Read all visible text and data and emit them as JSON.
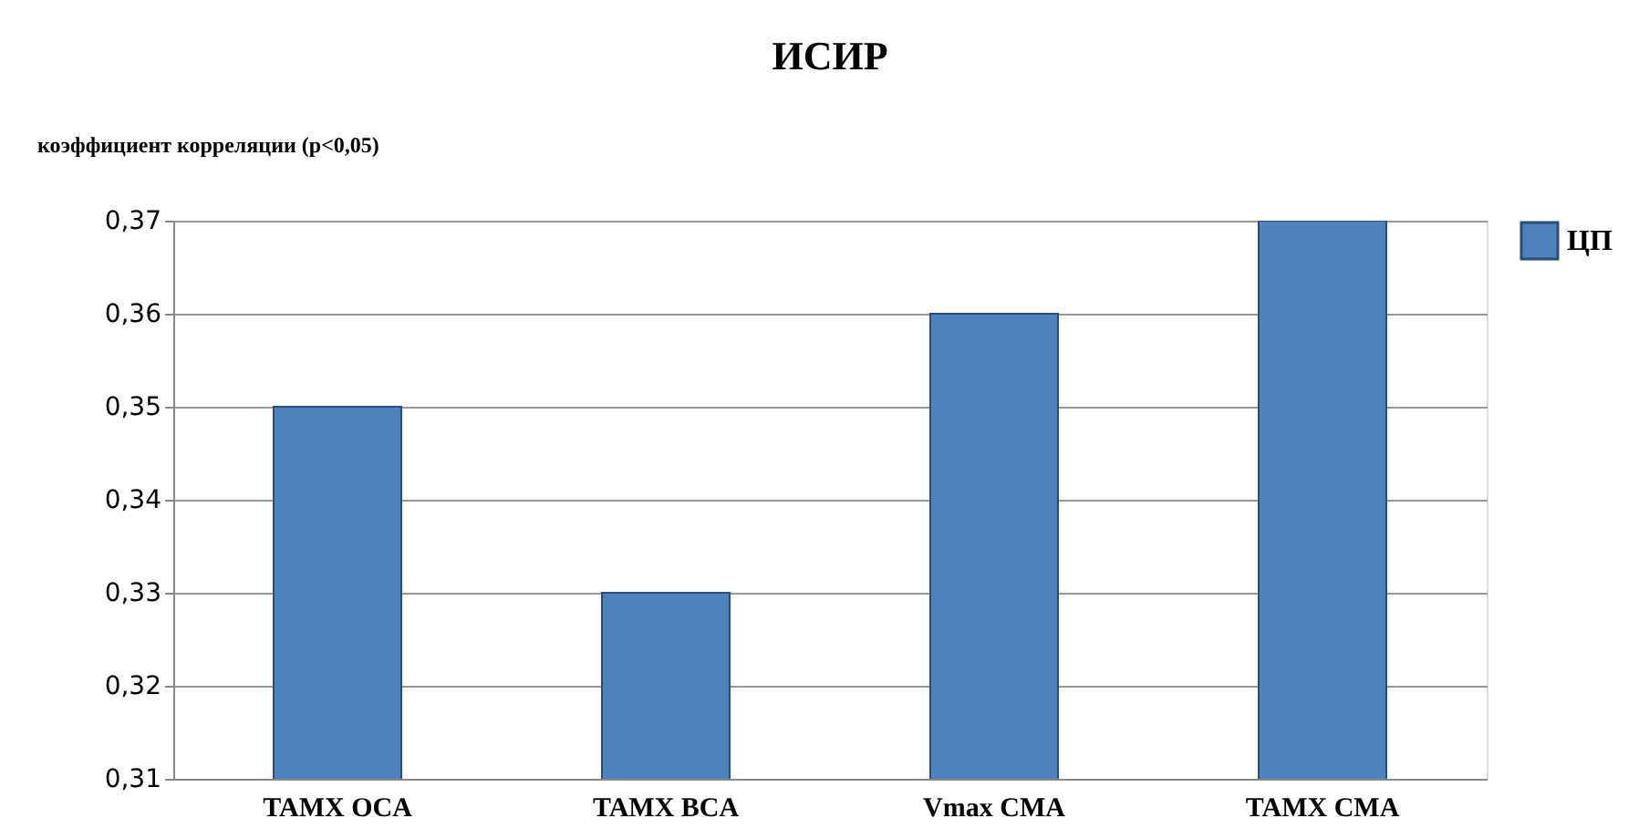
{
  "chart_data": {
    "type": "bar",
    "title": "ИСИР",
    "ylabel": "коэффициент корреляции (р<0,05)",
    "categories": [
      "TAMX OCA",
      "TAMX BCA",
      "Vmax CMA",
      "TAMX CMA"
    ],
    "series": [
      {
        "name": "ЦП",
        "color": "#4f81bd",
        "values": [
          0.35,
          0.33,
          0.36,
          0.37
        ]
      }
    ],
    "ylim": [
      0.31,
      0.37
    ],
    "yticks": [
      {
        "value": 0.31,
        "label": "0,31"
      },
      {
        "value": 0.32,
        "label": "0,32"
      },
      {
        "value": 0.33,
        "label": "0,33"
      },
      {
        "value": 0.34,
        "label": "0,34"
      },
      {
        "value": 0.35,
        "label": "0,35"
      },
      {
        "value": 0.36,
        "label": "0,36"
      },
      {
        "value": 0.37,
        "label": "0,37"
      }
    ],
    "grid": "y",
    "legend": "right"
  }
}
